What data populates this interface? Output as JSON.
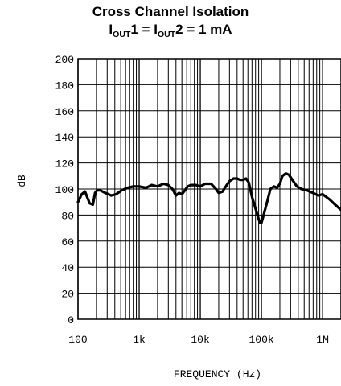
{
  "chart_data": {
    "type": "line",
    "title": "Cross Channel Isolation",
    "subtitle_parts": [
      "I",
      "OUT",
      "1 = I",
      "OUT",
      "2 = 1 mA"
    ],
    "xlabel": "FREQUENCY (Hz)",
    "ylabel": "dB",
    "x_scale": "log",
    "xlim": [
      100,
      2000000
    ],
    "ylim": [
      0,
      200
    ],
    "x_ticks": [
      {
        "value": 100,
        "label": "100"
      },
      {
        "value": 1000,
        "label": "1k"
      },
      {
        "value": 10000,
        "label": "10k"
      },
      {
        "value": 100000,
        "label": "100k"
      },
      {
        "value": 1000000,
        "label": "1M"
      }
    ],
    "y_ticks": [
      {
        "value": 0,
        "label": "0"
      },
      {
        "value": 20,
        "label": "20"
      },
      {
        "value": 40,
        "label": "40"
      },
      {
        "value": 60,
        "label": "60"
      },
      {
        "value": 80,
        "label": "80"
      },
      {
        "value": 100,
        "label": "100"
      },
      {
        "value": 120,
        "label": "120"
      },
      {
        "value": 140,
        "label": "140"
      },
      {
        "value": 160,
        "label": "160"
      },
      {
        "value": 180,
        "label": "180"
      },
      {
        "value": 200,
        "label": "200"
      }
    ],
    "grid": true,
    "series": [
      {
        "color": "#000000",
        "x": [
          100,
          115,
          130,
          155,
          175,
          190,
          205,
          230,
          280,
          350,
          420,
          520,
          650,
          800,
          1000,
          1300,
          1600,
          2000,
          2500,
          3000,
          3500,
          4000,
          4500,
          5000,
          5600,
          6200,
          7000,
          7700,
          8500,
          10000,
          12000,
          15000,
          18000,
          20000,
          23000,
          27000,
          30000,
          35000,
          40000,
          45000,
          50000,
          56000,
          62000,
          70000,
          80000,
          90000,
          95000,
          100000,
          110000,
          125000,
          140000,
          160000,
          180000,
          200000,
          220000,
          250000,
          280000,
          320000,
          380000,
          450000,
          550000,
          700000,
          850000,
          1000000,
          1300000,
          1600000,
          2000000
        ],
        "y": [
          90,
          96,
          98,
          89,
          88,
          97,
          99,
          99,
          97,
          95,
          96,
          99,
          101,
          102,
          102,
          101,
          103,
          102,
          104,
          103,
          100,
          95,
          97,
          96,
          99,
          102,
          103,
          103,
          103,
          102,
          104,
          104,
          100,
          97,
          98,
          103,
          106,
          108,
          108,
          107,
          107,
          108,
          105,
          94,
          85,
          77,
          74,
          74,
          81,
          91,
          100,
          102,
          101,
          104,
          110,
          112,
          111,
          107,
          102,
          100,
          99,
          97,
          95,
          96,
          92,
          88,
          84
        ]
      }
    ]
  }
}
